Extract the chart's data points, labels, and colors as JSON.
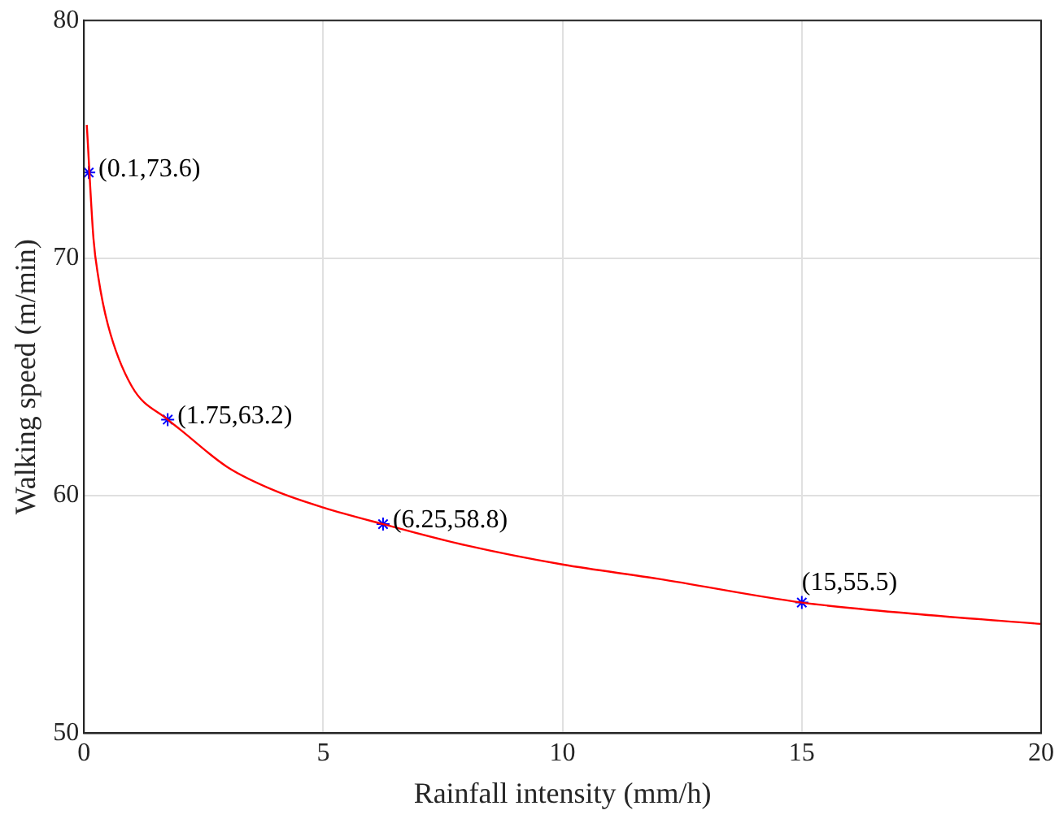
{
  "chart_data": {
    "type": "line",
    "xlabel": "Rainfall intensity (mm/h)",
    "ylabel": "Walking speed (m/min)",
    "xlim": [
      0,
      20
    ],
    "xticks": [
      0,
      5,
      10,
      15,
      20
    ],
    "ylim": [
      50,
      80
    ],
    "yticks": [
      50,
      60,
      70,
      80
    ],
    "grid": true,
    "series": [
      {
        "type": "line",
        "color": "#ff0000",
        "marker": "none",
        "x": [
          0.06,
          0.2,
          0.3,
          0.5,
          1,
          1.75,
          2,
          3,
          4,
          5,
          6.25,
          8,
          10,
          12,
          15,
          17.5,
          20
        ],
        "values": [
          75.6,
          70.8,
          69.2,
          67.2,
          64.6,
          63.2,
          62.8,
          61.2,
          60.2,
          59.5,
          58.8,
          57.9,
          57.1,
          56.5,
          55.5,
          55.0,
          54.6
        ]
      },
      {
        "type": "scatter",
        "color": "#0000ff",
        "marker": "cross",
        "x": [
          0.1,
          1.75,
          6.25,
          15
        ],
        "values": [
          73.6,
          63.2,
          58.8,
          55.5
        ]
      }
    ],
    "annotations": [
      {
        "text": "(0.1,73.6)",
        "x": 0.1,
        "y": 73.6
      },
      {
        "text": "(1.75,63.2)",
        "x": 1.75,
        "y": 63.2
      },
      {
        "text": "(6.25,58.8)",
        "x": 6.25,
        "y": 58.8
      },
      {
        "text": "(15,55.5)",
        "x": 15,
        "y": 55.5
      }
    ]
  }
}
